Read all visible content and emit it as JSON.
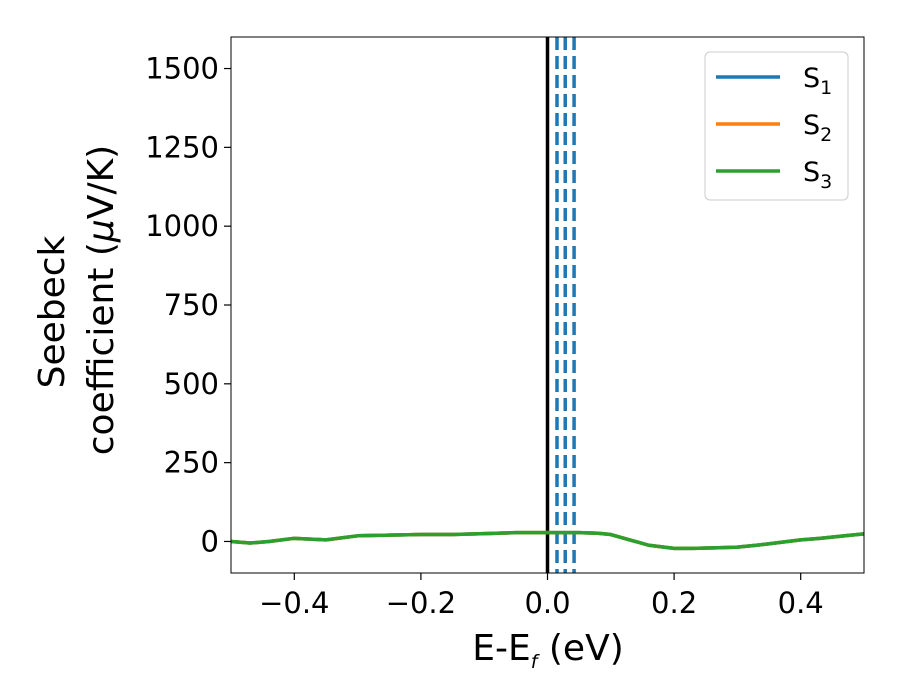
{
  "chart_data": {
    "type": "line",
    "xlabel": {
      "main": "E-E",
      "sub": "f",
      "unit": " (eV)"
    },
    "ylabel": {
      "line1": "Seebeck",
      "line2_prefix": "coefficient  (",
      "mu": "μ",
      "line2_suffix": "V/K)"
    },
    "xlim": [
      -0.5,
      0.5
    ],
    "ylim": [
      -100,
      1600
    ],
    "x_ticks": [
      -0.4,
      -0.2,
      0.0,
      0.2,
      0.4
    ],
    "x_tick_labels": [
      "−0.4",
      "−0.2",
      "0.0",
      "0.2",
      "0.4"
    ],
    "y_ticks": [
      0,
      250,
      500,
      750,
      1000,
      1250,
      1500
    ],
    "y_tick_labels": [
      "0",
      "250",
      "500",
      "750",
      "1000",
      "1250",
      "1500"
    ],
    "legend": {
      "placement": "top-right",
      "entries": [
        {
          "base": "S",
          "sub": "1",
          "color": "#1f77b4"
        },
        {
          "base": "S",
          "sub": "2",
          "color": "#ff7f0e"
        },
        {
          "base": "S",
          "sub": "3",
          "color": "#2ca02c"
        }
      ]
    },
    "vertical_lines": [
      {
        "x": 0.0,
        "style": "solid",
        "color": "#000000"
      },
      {
        "x": 0.015,
        "style": "dashed",
        "color": "#1f77b4"
      },
      {
        "x": 0.028,
        "style": "dashed",
        "color": "#1f77b4"
      },
      {
        "x": 0.042,
        "style": "dashed",
        "color": "#1f77b4"
      }
    ],
    "series": [
      {
        "color": "#1f77b4",
        "x": [
          -0.5,
          -0.47,
          -0.44,
          -0.4,
          -0.35,
          -0.3,
          -0.25,
          -0.2,
          -0.15,
          -0.1,
          -0.05,
          0.0,
          0.05,
          0.08,
          0.1,
          0.13,
          0.16,
          0.2,
          0.23,
          0.27,
          0.3,
          0.33,
          0.36,
          0.4,
          0.43,
          0.47,
          0.5
        ],
        "values": [
          0,
          -5,
          0,
          10,
          5,
          18,
          20,
          22,
          22,
          25,
          28,
          28,
          28,
          26,
          22,
          5,
          -12,
          -22,
          -22,
          -20,
          -18,
          -12,
          -5,
          5,
          10,
          18,
          24
        ]
      },
      {
        "color": "#ff7f0e",
        "x": [
          -0.5,
          -0.47,
          -0.44,
          -0.4,
          -0.35,
          -0.3,
          -0.25,
          -0.2,
          -0.15,
          -0.1,
          -0.05,
          0.0,
          0.05,
          0.08,
          0.1,
          0.13,
          0.16,
          0.2,
          0.23,
          0.27,
          0.3,
          0.33,
          0.36,
          0.4,
          0.43,
          0.47,
          0.5
        ],
        "values": [
          0,
          -5,
          0,
          10,
          5,
          18,
          20,
          22,
          22,
          25,
          28,
          28,
          28,
          26,
          22,
          5,
          -12,
          -22,
          -22,
          -20,
          -18,
          -12,
          -5,
          5,
          10,
          18,
          24
        ]
      },
      {
        "color": "#2ca02c",
        "x": [
          -0.5,
          -0.47,
          -0.44,
          -0.4,
          -0.35,
          -0.3,
          -0.25,
          -0.2,
          -0.15,
          -0.1,
          -0.05,
          0.0,
          0.05,
          0.08,
          0.1,
          0.13,
          0.16,
          0.2,
          0.23,
          0.27,
          0.3,
          0.33,
          0.36,
          0.4,
          0.43,
          0.47,
          0.5
        ],
        "values": [
          0,
          -5,
          0,
          10,
          5,
          18,
          20,
          22,
          22,
          25,
          28,
          28,
          28,
          26,
          22,
          5,
          -12,
          -22,
          -22,
          -20,
          -18,
          -12,
          -5,
          5,
          10,
          18,
          24
        ]
      }
    ]
  }
}
